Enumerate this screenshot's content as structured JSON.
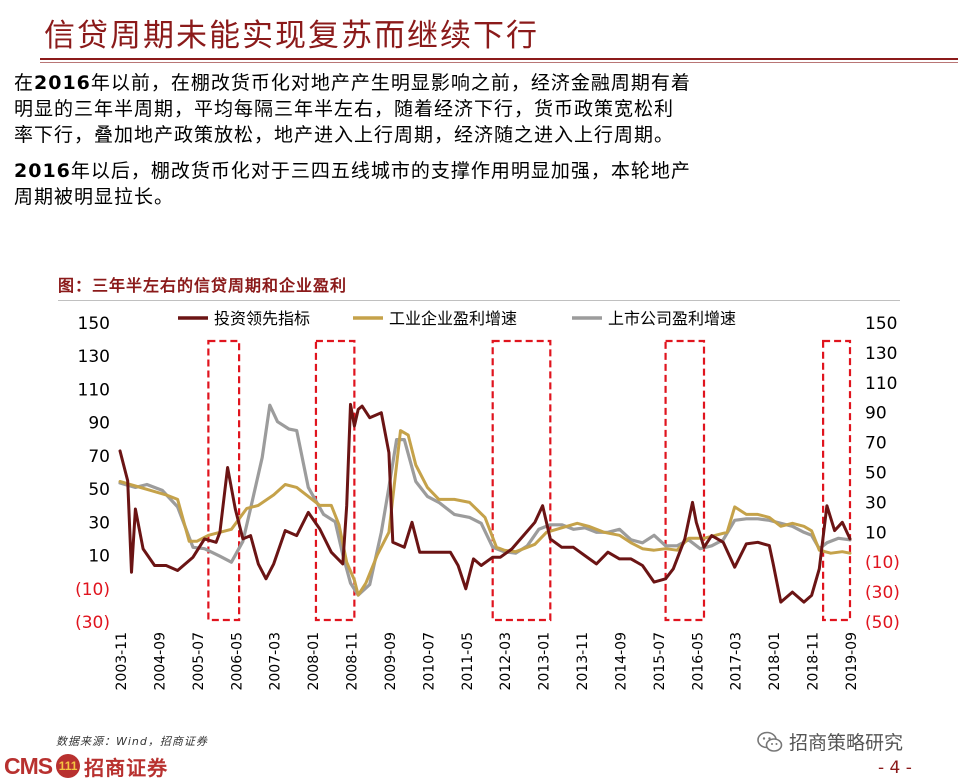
{
  "header": {
    "title": "信贷周期未能实现复苏而继续下行"
  },
  "paragraphs": [
    {
      "year": "2016",
      "line1_rest": "年以前，在棚改货币化对地产产生明显影响之前，经济金融周期有着",
      "line1_pre": "在",
      "line2": "明显的三年半周期，平均每隔三年半左右，随着经济下行，货币政策宽松利",
      "line3": "率下行，叠加地产政策放松，地产进入上行周期，经济随之进入上行周期。"
    },
    {
      "year": "2016",
      "line1_rest": "年以后，棚改货币化对于三四五线城市的支撑作用明显加强，本轮地产",
      "line2": "周期被明显拉长。"
    }
  ],
  "chart_title": "图：三年半左右的信贷周期和企业盈利",
  "footer": {
    "source": "数据来源：Wind，招商证券",
    "logo_cms": "CMS",
    "logo_badge": "111",
    "logo_text": "招商证券",
    "wechat": "招商策略研究",
    "page": "- 4 -"
  },
  "colors": {
    "accent": "#8b1a1a",
    "investment": "#6b1414",
    "industrial": "#c5a24a",
    "listed": "#9c9c9c",
    "highlight_box": "#e0141e",
    "negative_label": "#e0141e"
  },
  "chart_data": {
    "type": "line",
    "title": "图：三年半左右的信贷周期和企业盈利",
    "x_ticks": [
      "2003-11",
      "2004-09",
      "2005-07",
      "2006-05",
      "2007-03",
      "2008-01",
      "2008-11",
      "2009-09",
      "2010-07",
      "2011-05",
      "2012-03",
      "2013-01",
      "2013-11",
      "2014-09",
      "2015-07",
      "2016-05",
      "2017-03",
      "2018-01",
      "2018-11",
      "2019-09"
    ],
    "x_range": [
      "2003-11",
      "2019-09"
    ],
    "y_left": {
      "range": [
        -30,
        150
      ],
      "ticks": [
        "150",
        "130",
        "110",
        "90",
        "70",
        "50",
        "30",
        "10",
        "(10)",
        "(30)"
      ]
    },
    "y_right": {
      "range": [
        -50,
        150
      ],
      "ticks": [
        "150",
        "130",
        "110",
        "90",
        "70",
        "50",
        "30",
        "10",
        "(10)",
        "(30)",
        "(50)"
      ]
    },
    "highlight_periods": [
      [
        "2005-10",
        "2006-06"
      ],
      [
        "2008-02",
        "2008-12"
      ],
      [
        "2011-12",
        "2013-03"
      ],
      [
        "2015-09",
        "2016-07"
      ],
      [
        "2019-02",
        "2019-09"
      ]
    ],
    "series": [
      {
        "name": "投资领先指标",
        "axis": "left",
        "points": [
          [
            "2003-11",
            73
          ],
          [
            "2004-01",
            55
          ],
          [
            "2004-02",
            0
          ],
          [
            "2004-03",
            38
          ],
          [
            "2004-05",
            14
          ],
          [
            "2004-08",
            4
          ],
          [
            "2004-11",
            4
          ],
          [
            "2005-02",
            1
          ],
          [
            "2005-06",
            9
          ],
          [
            "2005-09",
            20
          ],
          [
            "2005-12",
            18
          ],
          [
            "2006-01",
            24
          ],
          [
            "2006-03",
            63
          ],
          [
            "2006-05",
            38
          ],
          [
            "2006-07",
            20
          ],
          [
            "2006-09",
            22
          ],
          [
            "2006-11",
            5
          ],
          [
            "2007-01",
            -4
          ],
          [
            "2007-03",
            5
          ],
          [
            "2007-06",
            25
          ],
          [
            "2007-09",
            22
          ],
          [
            "2007-12",
            36
          ],
          [
            "2008-03",
            26
          ],
          [
            "2008-06",
            12
          ],
          [
            "2008-09",
            5
          ],
          [
            "2008-10",
            40
          ],
          [
            "2008-11",
            101
          ],
          [
            "2008-12",
            88
          ],
          [
            "2009-01",
            98
          ],
          [
            "2009-02",
            100
          ],
          [
            "2009-04",
            93
          ],
          [
            "2009-07",
            96
          ],
          [
            "2009-09",
            72
          ],
          [
            "2009-10",
            18
          ],
          [
            "2010-01",
            15
          ],
          [
            "2010-03",
            30
          ],
          [
            "2010-05",
            12
          ],
          [
            "2010-09",
            12
          ],
          [
            "2011-01",
            12
          ],
          [
            "2011-03",
            4
          ],
          [
            "2011-05",
            -10
          ],
          [
            "2011-07",
            8
          ],
          [
            "2011-09",
            4
          ],
          [
            "2011-12",
            9
          ],
          [
            "2012-02",
            9
          ],
          [
            "2012-05",
            14
          ],
          [
            "2012-08",
            22
          ],
          [
            "2012-11",
            30
          ],
          [
            "2013-01",
            40
          ],
          [
            "2013-03",
            20
          ],
          [
            "2013-06",
            15
          ],
          [
            "2013-09",
            15
          ],
          [
            "2013-12",
            10
          ],
          [
            "2014-03",
            5
          ],
          [
            "2014-06",
            12
          ],
          [
            "2014-09",
            8
          ],
          [
            "2014-12",
            8
          ],
          [
            "2015-03",
            4
          ],
          [
            "2015-06",
            -6
          ],
          [
            "2015-09",
            -4
          ],
          [
            "2015-11",
            2
          ],
          [
            "2016-02",
            20
          ],
          [
            "2016-04",
            42
          ],
          [
            "2016-05",
            30
          ],
          [
            "2016-07",
            15
          ],
          [
            "2016-09",
            22
          ],
          [
            "2016-12",
            18
          ],
          [
            "2017-03",
            3
          ],
          [
            "2017-06",
            17
          ],
          [
            "2017-09",
            18
          ],
          [
            "2017-12",
            16
          ],
          [
            "2018-01",
            5
          ],
          [
            "2018-03",
            -18
          ],
          [
            "2018-06",
            -12
          ],
          [
            "2018-09",
            -18
          ],
          [
            "2018-11",
            -14
          ],
          [
            "2019-01",
            2
          ],
          [
            "2019-03",
            40
          ],
          [
            "2019-05",
            25
          ],
          [
            "2019-07",
            30
          ],
          [
            "2019-09",
            20
          ]
        ]
      },
      {
        "name": "工业企业盈利增速",
        "axis": "right",
        "points": [
          [
            "2003-11",
            44
          ],
          [
            "2004-03",
            41
          ],
          [
            "2004-07",
            38
          ],
          [
            "2004-11",
            35
          ],
          [
            "2005-02",
            32
          ],
          [
            "2005-05",
            4
          ],
          [
            "2005-07",
            4
          ],
          [
            "2005-10",
            8
          ],
          [
            "2006-01",
            10
          ],
          [
            "2006-04",
            12
          ],
          [
            "2006-08",
            26
          ],
          [
            "2006-11",
            28
          ],
          [
            "2007-03",
            35
          ],
          [
            "2007-06",
            42
          ],
          [
            "2007-09",
            40
          ],
          [
            "2007-12",
            34
          ],
          [
            "2008-03",
            28
          ],
          [
            "2008-06",
            28
          ],
          [
            "2008-08",
            15
          ],
          [
            "2008-10",
            -10
          ],
          [
            "2008-12",
            -22
          ],
          [
            "2009-01",
            -32
          ],
          [
            "2009-03",
            -24
          ],
          [
            "2009-06",
            -5
          ],
          [
            "2009-09",
            10
          ],
          [
            "2009-12",
            78
          ],
          [
            "2010-02",
            75
          ],
          [
            "2010-04",
            55
          ],
          [
            "2010-07",
            40
          ],
          [
            "2010-10",
            32
          ],
          [
            "2011-02",
            32
          ],
          [
            "2011-06",
            30
          ],
          [
            "2011-10",
            20
          ],
          [
            "2012-01",
            0
          ],
          [
            "2012-03",
            -2
          ],
          [
            "2012-06",
            -3
          ],
          [
            "2012-09",
            0
          ],
          [
            "2012-11",
            2
          ],
          [
            "2013-02",
            10
          ],
          [
            "2013-06",
            13
          ],
          [
            "2013-10",
            16
          ],
          [
            "2014-01",
            14
          ],
          [
            "2014-05",
            10
          ],
          [
            "2014-09",
            8
          ],
          [
            "2014-12",
            3
          ],
          [
            "2015-03",
            -1
          ],
          [
            "2015-06",
            -2
          ],
          [
            "2015-09",
            -1
          ],
          [
            "2015-12",
            -2
          ],
          [
            "2016-03",
            6
          ],
          [
            "2016-07",
            6
          ],
          [
            "2016-10",
            8
          ],
          [
            "2017-01",
            10
          ],
          [
            "2017-03",
            27
          ],
          [
            "2017-06",
            22
          ],
          [
            "2017-09",
            22
          ],
          [
            "2017-12",
            20
          ],
          [
            "2018-03",
            14
          ],
          [
            "2018-06",
            16
          ],
          [
            "2018-09",
            14
          ],
          [
            "2018-11",
            11
          ],
          [
            "2019-01",
            -2
          ],
          [
            "2019-04",
            -4
          ],
          [
            "2019-07",
            -3
          ],
          [
            "2019-09",
            -4
          ]
        ]
      },
      {
        "name": "上市公司盈利增速",
        "axis": "right",
        "points": [
          [
            "2003-11",
            43
          ],
          [
            "2004-03",
            40
          ],
          [
            "2004-06",
            42
          ],
          [
            "2004-10",
            38
          ],
          [
            "2005-02",
            27
          ],
          [
            "2005-06",
            0
          ],
          [
            "2005-09",
            -1
          ],
          [
            "2006-01",
            -6
          ],
          [
            "2006-04",
            -10
          ],
          [
            "2006-07",
            4
          ],
          [
            "2006-09",
            26
          ],
          [
            "2006-12",
            60
          ],
          [
            "2007-02",
            95
          ],
          [
            "2007-04",
            84
          ],
          [
            "2007-07",
            79
          ],
          [
            "2007-09",
            78
          ],
          [
            "2007-12",
            40
          ],
          [
            "2008-04",
            22
          ],
          [
            "2008-07",
            17
          ],
          [
            "2008-09",
            -5
          ],
          [
            "2008-11",
            -24
          ],
          [
            "2009-01",
            -32
          ],
          [
            "2009-04",
            -25
          ],
          [
            "2009-07",
            10
          ],
          [
            "2009-09",
            40
          ],
          [
            "2009-11",
            72
          ],
          [
            "2010-01",
            72
          ],
          [
            "2010-04",
            44
          ],
          [
            "2010-07",
            34
          ],
          [
            "2010-10",
            30
          ],
          [
            "2011-02",
            22
          ],
          [
            "2011-06",
            20
          ],
          [
            "2011-09",
            16
          ],
          [
            "2011-12",
            0
          ],
          [
            "2012-03",
            -3
          ],
          [
            "2012-06",
            -4
          ],
          [
            "2012-09",
            1
          ],
          [
            "2012-12",
            12
          ],
          [
            "2013-03",
            15
          ],
          [
            "2013-06",
            15
          ],
          [
            "2013-09",
            12
          ],
          [
            "2013-12",
            13
          ],
          [
            "2014-03",
            10
          ],
          [
            "2014-06",
            10
          ],
          [
            "2014-09",
            12
          ],
          [
            "2014-12",
            5
          ],
          [
            "2015-03",
            3
          ],
          [
            "2015-06",
            8
          ],
          [
            "2015-09",
            1
          ],
          [
            "2015-12",
            1
          ],
          [
            "2016-03",
            5
          ],
          [
            "2016-06",
            -1
          ],
          [
            "2016-09",
            1
          ],
          [
            "2016-12",
            5
          ],
          [
            "2017-03",
            18
          ],
          [
            "2017-06",
            19
          ],
          [
            "2017-09",
            19
          ],
          [
            "2017-12",
            18
          ],
          [
            "2018-03",
            16
          ],
          [
            "2018-06",
            14
          ],
          [
            "2018-09",
            10
          ],
          [
            "2018-11",
            8
          ],
          [
            "2019-01",
            -1
          ],
          [
            "2019-03",
            3
          ],
          [
            "2019-06",
            6
          ],
          [
            "2019-09",
            5
          ]
        ]
      }
    ]
  }
}
